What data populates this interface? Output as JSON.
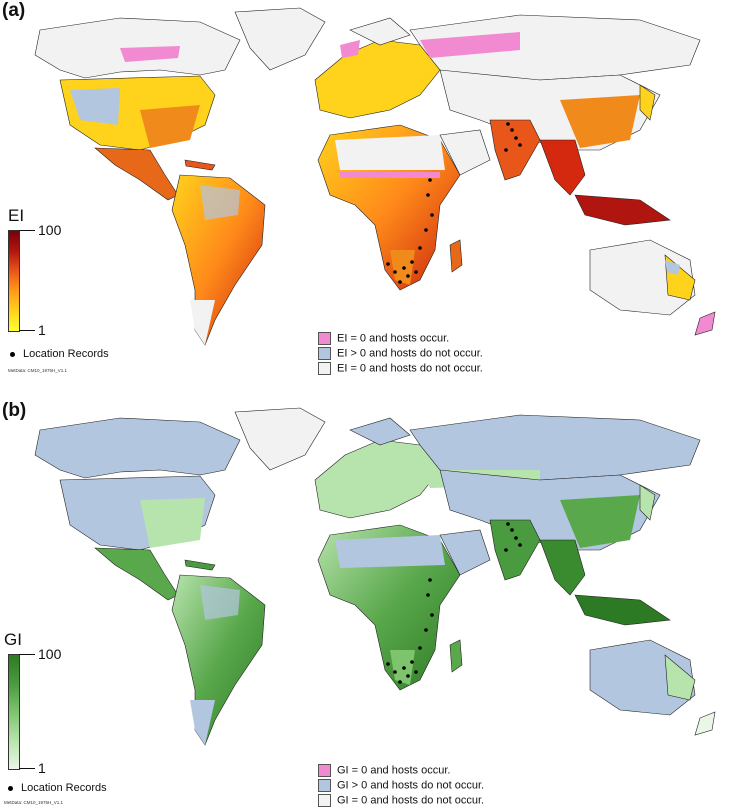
{
  "panels": [
    {
      "label": "(a)",
      "scale_title": "EI",
      "scale_max": "100",
      "scale_min": "1",
      "gradient": [
        "#ffff33",
        "#ffd21c",
        "#ff9b1a",
        "#e8561a",
        "#b0160f",
        "#7a0008"
      ],
      "location_records": "Location Records",
      "metdata": "MetData: CM10_1975H_V1.1",
      "legend": [
        {
          "text": "EI = 0 and hosts occur.",
          "color": "#f28ad2"
        },
        {
          "text": "EI > 0 and hosts do not occur.",
          "color": "#b3c6e0"
        },
        {
          "text": "EI = 0 and hosts do not occur.",
          "color": "#f2f2f2"
        }
      ],
      "colors": {
        "land_low": "#ffd21c",
        "land_high": "#d4290e",
        "ocean": "#ffffff"
      }
    },
    {
      "label": "(b)",
      "scale_title": "GI",
      "scale_max": "100",
      "scale_min": "1",
      "gradient": [
        "#eaf7e6",
        "#b7e3ad",
        "#7ec46f",
        "#4a9a3f",
        "#2d7a24"
      ],
      "location_records": "Location Records",
      "metdata": "MetData: CM10_1975H_V1.1",
      "legend": [
        {
          "text": "GI = 0 and hosts occur.",
          "color": "#f28ad2"
        },
        {
          "text": "GI > 0 and hosts do not occur.",
          "color": "#b3c6e0"
        },
        {
          "text": "GI = 0 and hosts do not occur.",
          "color": "#f2f2f2"
        }
      ],
      "colors": {
        "land_low": "#b7e3ad",
        "land_high": "#2d7a24",
        "ocean": "#ffffff"
      }
    }
  ]
}
